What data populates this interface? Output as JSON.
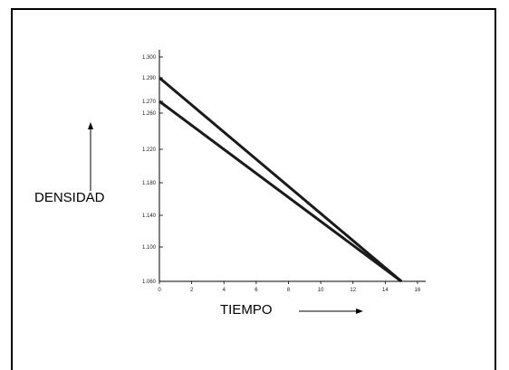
{
  "chart_data": {
    "type": "line",
    "title": "",
    "xlabel": "TIEMPO",
    "ylabel": "DENSIDAD",
    "x_ticks": [
      0,
      2,
      4,
      6,
      8,
      10,
      12,
      14,
      16
    ],
    "y_tick_labels": [
      "1.300",
      "1.290",
      "1.270",
      "1.260",
      "1.220",
      "1.180",
      "1.140",
      "1.100",
      "1.060"
    ],
    "xlim": [
      0,
      16.5
    ],
    "series": [
      {
        "x": [
          0,
          15
        ],
        "y": [
          1.29,
          1.06
        ]
      },
      {
        "x": [
          0,
          15
        ],
        "y": [
          1.27,
          1.06
        ]
      }
    ],
    "grid": false,
    "line_color": "#1a1a1a"
  }
}
